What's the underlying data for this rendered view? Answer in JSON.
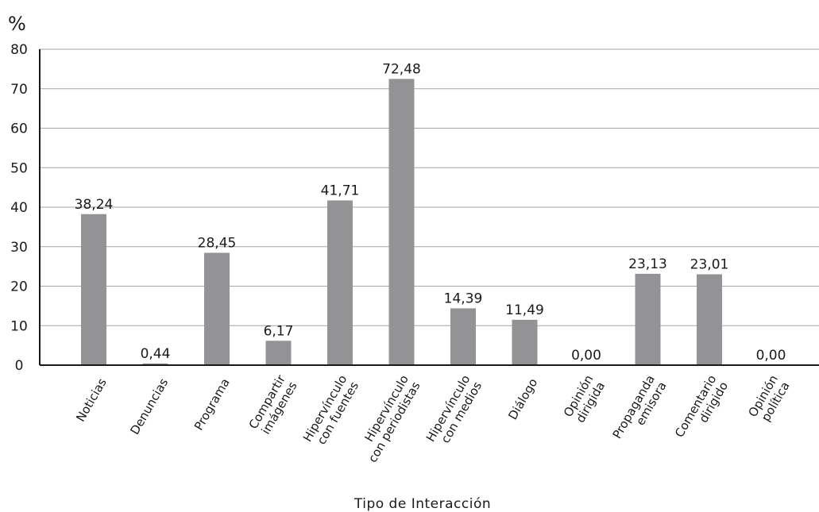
{
  "chart_data": {
    "type": "bar",
    "ylabel": "%",
    "xlabel": "Tipo de Interacción",
    "ylim": [
      0,
      80
    ],
    "yticks": [
      0,
      10,
      20,
      30,
      40,
      50,
      60,
      70,
      80
    ],
    "grid": true,
    "bar_color": "#939396",
    "categories": [
      [
        "Noticias"
      ],
      [
        "Denuncias"
      ],
      [
        "Programa"
      ],
      [
        "Compartir",
        "imágenes"
      ],
      [
        "Hipervínculo",
        "con fuentes"
      ],
      [
        "Hipervínculo",
        "con periodistas"
      ],
      [
        "Hipervínculo",
        "con medios"
      ],
      [
        "Diálogo"
      ],
      [
        "Opinión",
        "dirigida"
      ],
      [
        "Propaganda",
        "emisora"
      ],
      [
        "Comentario",
        "dirigido"
      ],
      [
        "Opinión",
        "política"
      ]
    ],
    "values": [
      38.24,
      0.44,
      28.45,
      6.17,
      41.71,
      72.48,
      14.39,
      11.49,
      0.0,
      23.13,
      23.01,
      0.0
    ],
    "value_labels": [
      "38,24",
      "0,44",
      "28,45",
      "6,17",
      "41,71",
      "72,48",
      "14,39",
      "11,49",
      "0,00",
      "23,13",
      "23,01",
      "0,00"
    ]
  }
}
